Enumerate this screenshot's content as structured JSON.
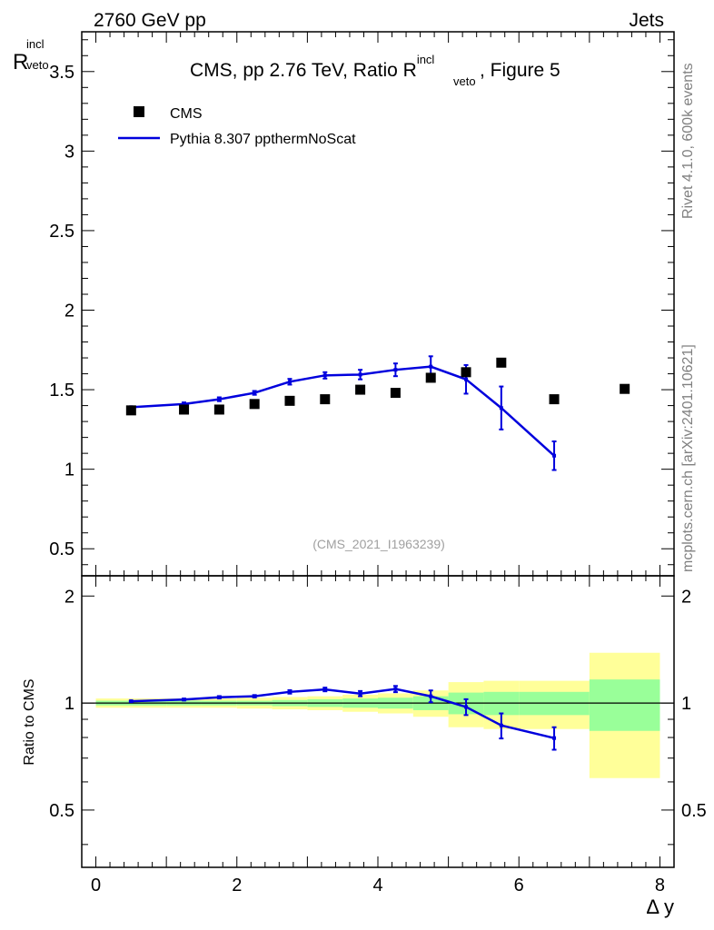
{
  "header": {
    "left": "2760 GeV pp",
    "right": "Jets"
  },
  "side": {
    "rivet": "Rivet 4.1.0,  600k events",
    "mcplots": "mcplots.cern.ch [arXiv:2401.10621]"
  },
  "chart_data": [
    {
      "type": "scatter",
      "panel": "main",
      "title_parts": {
        "pre": "CMS, pp 2.76 TeV, Ratio R",
        "sup": "incl",
        "sub": "veto",
        "post": ", Figure 5"
      },
      "ylabel": {
        "base": "R",
        "sup": "incl",
        "sub": "veto"
      },
      "ylim": [
        0.33,
        3.75
      ],
      "yticks": [
        "0.5",
        "1",
        "1.5",
        "2",
        "2.5",
        "3",
        "3.5"
      ],
      "ytick_values": [
        0.5,
        1,
        1.5,
        2,
        2.5,
        3,
        3.5
      ],
      "xlim": [
        -0.2,
        8.2
      ],
      "watermark": "(CMS_2021_I1963239)",
      "legend": {
        "position": "top-left",
        "data": "CMS",
        "mc": "Pythia 8.307 ppthermNoScat"
      },
      "data_series": {
        "name": "CMS",
        "x": [
          0.5,
          1.25,
          1.75,
          2.25,
          2.75,
          3.25,
          3.75,
          4.25,
          4.75,
          5.25,
          5.75,
          6.5,
          7.5
        ],
        "y": [
          1.37,
          1.375,
          1.375,
          1.41,
          1.43,
          1.44,
          1.5,
          1.48,
          1.575,
          1.61,
          1.67,
          1.44,
          1.505
        ]
      },
      "mc_series": {
        "name": "Pythia 8.307 ppthermNoScat",
        "color": "#0000dd",
        "x": [
          0.5,
          1.25,
          1.75,
          2.25,
          2.75,
          3.25,
          3.75,
          4.25,
          4.75,
          5.25,
          5.75,
          6.5
        ],
        "y": [
          1.39,
          1.41,
          1.44,
          1.48,
          1.55,
          1.59,
          1.595,
          1.625,
          1.645,
          1.565,
          1.385,
          1.085
        ],
        "err": [
          0.005,
          0.01,
          0.012,
          0.012,
          0.018,
          0.02,
          0.03,
          0.04,
          0.065,
          0.09,
          0.135,
          0.09
        ]
      }
    },
    {
      "type": "line",
      "panel": "ratio",
      "ylabel": "Ratio to CMS",
      "ylim": [
        0.345,
        2.28
      ],
      "yticks": [
        "0.5",
        "1",
        "2"
      ],
      "ytick_values": [
        0.5,
        1,
        2
      ],
      "xlim": [
        -0.2,
        8.2
      ],
      "xlabel": "Δ y",
      "xticks": [
        "0",
        "2",
        "4",
        "6",
        "8"
      ],
      "xtick_values": [
        0,
        2,
        4,
        6,
        8
      ],
      "bands": {
        "x_edges": [
          0.0,
          1.0,
          1.5,
          2.0,
          2.5,
          3.0,
          3.5,
          4.0,
          4.5,
          5.0,
          5.5,
          6.0,
          7.0,
          8.0
        ],
        "inner_lo": [
          0.985,
          0.985,
          0.985,
          0.985,
          0.98,
          0.975,
          0.97,
          0.965,
          0.955,
          0.93,
          0.925,
          0.925,
          0.835
        ],
        "inner_hi": [
          1.015,
          1.015,
          1.015,
          1.015,
          1.02,
          1.025,
          1.03,
          1.035,
          1.045,
          1.07,
          1.075,
          1.075,
          1.165
        ],
        "outer_lo": [
          0.97,
          0.97,
          0.97,
          0.965,
          0.96,
          0.955,
          0.945,
          0.935,
          0.915,
          0.855,
          0.845,
          0.845,
          0.615
        ],
        "outer_hi": [
          1.03,
          1.03,
          1.03,
          1.035,
          1.04,
          1.045,
          1.055,
          1.065,
          1.085,
          1.145,
          1.155,
          1.155,
          1.385
        ],
        "inner_color": "#99ff99",
        "outer_color": "#ffff99"
      },
      "mc_ratio": {
        "x": [
          0.5,
          1.25,
          1.75,
          2.25,
          2.75,
          3.25,
          3.75,
          4.25,
          4.75,
          5.25,
          5.75,
          6.5
        ],
        "y": [
          1.012,
          1.023,
          1.038,
          1.045,
          1.075,
          1.092,
          1.063,
          1.095,
          1.045,
          0.975,
          0.865,
          0.797
        ],
        "err": [
          0.004,
          0.006,
          0.008,
          0.008,
          0.012,
          0.013,
          0.018,
          0.022,
          0.04,
          0.05,
          0.07,
          0.058
        ]
      }
    }
  ]
}
